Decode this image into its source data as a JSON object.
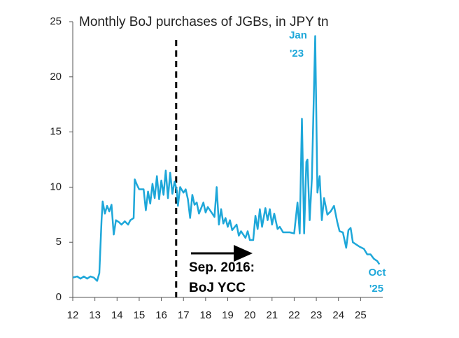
{
  "chart_data": {
    "type": "line",
    "title": "Monthly BoJ purchases of JGBs, in JPY tn",
    "color": "#1ea7d9",
    "x": [
      12.0,
      12.2,
      12.35,
      12.5,
      12.65,
      12.8,
      12.95,
      13.1,
      13.2,
      13.3,
      13.35,
      13.45,
      13.55,
      13.65,
      13.75,
      13.85,
      13.95,
      14.1,
      14.2,
      14.35,
      14.5,
      14.6,
      14.75,
      14.8,
      14.9,
      15.0,
      15.2,
      15.3,
      15.4,
      15.5,
      15.6,
      15.7,
      15.8,
      15.9,
      16.0,
      16.1,
      16.2,
      16.3,
      16.4,
      16.5,
      16.6,
      16.7,
      16.75,
      16.85,
      17.0,
      17.1,
      17.2,
      17.3,
      17.4,
      17.5,
      17.6,
      17.7,
      17.9,
      18.0,
      18.1,
      18.3,
      18.4,
      18.5,
      18.6,
      18.7,
      18.8,
      18.9,
      19.0,
      19.1,
      19.2,
      19.4,
      19.5,
      19.6,
      19.8,
      19.9,
      20.0,
      20.15,
      20.25,
      20.35,
      20.45,
      20.55,
      20.7,
      20.8,
      20.9,
      21.0,
      21.1,
      21.25,
      21.35,
      21.5,
      21.8,
      22.0,
      22.15,
      22.25,
      22.35,
      22.45,
      22.55,
      22.6,
      22.7,
      22.8,
      22.95,
      23.05,
      23.15,
      23.25,
      23.35,
      23.5,
      23.65,
      23.8,
      23.95,
      24.05,
      24.2,
      24.35,
      24.45,
      24.55,
      24.65,
      24.8,
      24.95,
      25.15,
      25.3,
      25.45,
      25.6,
      25.75,
      25.85
    ],
    "values": [
      1.8,
      1.9,
      1.7,
      1.9,
      1.7,
      1.9,
      1.8,
      1.5,
      2.2,
      7.0,
      8.7,
      7.6,
      8.3,
      7.8,
      8.4,
      5.7,
      7.0,
      6.8,
      6.6,
      6.9,
      6.6,
      7.0,
      7.2,
      10.7,
      10.2,
      9.8,
      9.8,
      7.9,
      9.6,
      8.5,
      10.3,
      9.0,
      11.0,
      8.9,
      10.6,
      9.3,
      11.5,
      9.0,
      11.3,
      9.4,
      10.5,
      9.7,
      8.3,
      10.0,
      9.5,
      9.8,
      8.9,
      7.2,
      9.3,
      8.4,
      8.6,
      7.6,
      8.6,
      7.7,
      8.2,
      7.6,
      7.3,
      10.0,
      6.6,
      8.0,
      6.7,
      7.2,
      6.4,
      7.0,
      6.1,
      6.6,
      5.6,
      6.0,
      5.4,
      6.0,
      5.2,
      5.2,
      7.4,
      6.2,
      8.0,
      6.4,
      8.1,
      7.0,
      8.0,
      6.6,
      7.6,
      6.2,
      6.4,
      5.9,
      5.9,
      5.8,
      8.6,
      5.8,
      16.2,
      5.8,
      12.3,
      12.5,
      7.0,
      10.8,
      23.7,
      9.5,
      11.0,
      7.0,
      9.0,
      7.5,
      7.8,
      8.3,
      6.8,
      6.0,
      5.9,
      4.5,
      6.1,
      6.3,
      5.0,
      4.8,
      4.6,
      4.4,
      3.9,
      3.9,
      3.5,
      3.3,
      3.0
    ],
    "xlim": [
      12,
      26
    ],
    "xticks": [
      12,
      13,
      14,
      15,
      16,
      17,
      18,
      19,
      20,
      21,
      22,
      23,
      24,
      25
    ],
    "ylim": [
      0,
      25
    ],
    "yticks": [
      0,
      5,
      10,
      15,
      20,
      25
    ],
    "reference_line": {
      "x": 16.67
    },
    "annotations": {
      "peak": [
        "Jan",
        "'23"
      ],
      "last": [
        "Oct",
        "'25"
      ],
      "event": [
        "Sep. 2016:",
        "BoJ YCC"
      ]
    }
  }
}
